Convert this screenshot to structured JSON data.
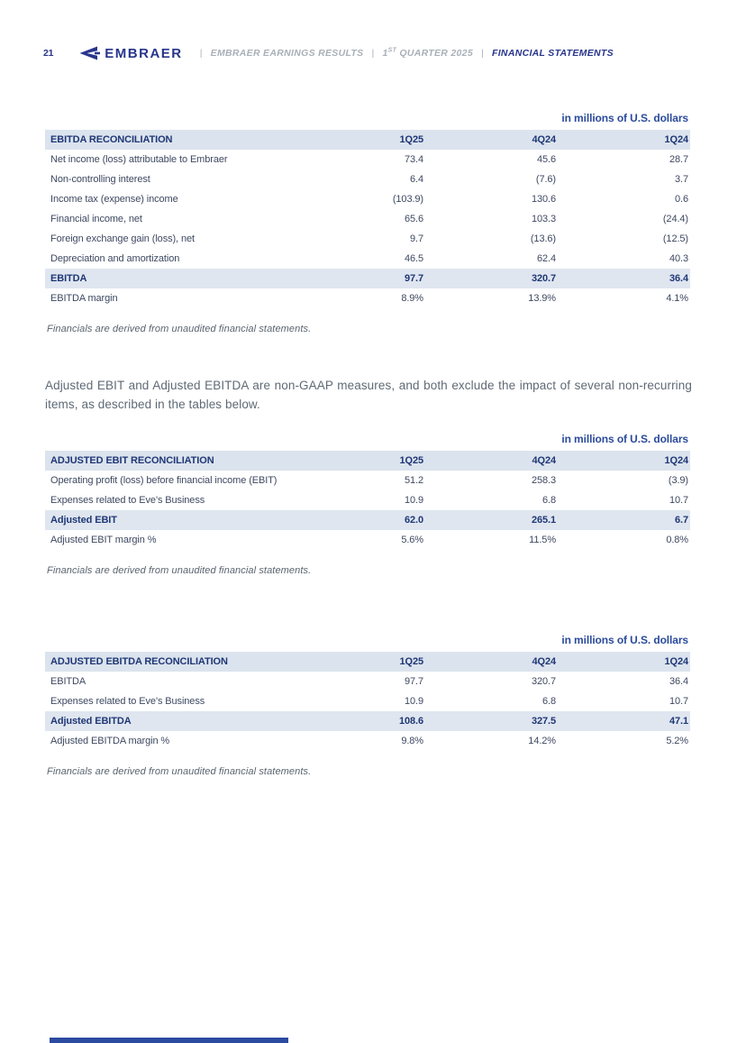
{
  "header": {
    "page_number": "21",
    "logo_brand": "EMBRAER",
    "breadcrumb": {
      "separator": "|",
      "report_name": "EMBRAER EARNINGS RESULTS",
      "quarter_number": "1",
      "quarter_superscript": "st",
      "quarter_rest": " QUARTER 2025",
      "section_name": "FINANCIAL STATEMENTS"
    }
  },
  "unit_label": "in millions of U.S. dollars",
  "footnote": "Financials are derived from unaudited financial statements.",
  "paragraph": "Adjusted EBIT and Adjusted EBITDA are non-GAAP measures, and both exclude the impact of several non-recurring items, as described in the tables below.",
  "colors": {
    "brand_navy": "#27358c",
    "table_header_bg": "#dbe3ee",
    "total_row_bg": "#dfe6f0",
    "muted_gray": "#a9b0b8"
  },
  "tables": [
    {
      "title": "EBITDA RECONCILIATION",
      "columns": [
        "1Q25",
        "4Q24",
        "1Q24"
      ],
      "rows": [
        {
          "label": "Net income (loss) attributable to Embraer",
          "values": [
            "73.4",
            "45.6",
            "28.7"
          ],
          "emphasis": false
        },
        {
          "label": "Non-controlling interest",
          "values": [
            "6.4",
            "(7.6)",
            "3.7"
          ],
          "emphasis": false
        },
        {
          "label": "Income tax (expense) income",
          "values": [
            "(103.9)",
            "130.6",
            "0.6"
          ],
          "emphasis": false
        },
        {
          "label": "Financial income, net",
          "values": [
            "65.6",
            "103.3",
            "(24.4)"
          ],
          "emphasis": false
        },
        {
          "label": "Foreign exchange gain (loss), net",
          "values": [
            "9.7",
            "(13.6)",
            "(12.5)"
          ],
          "emphasis": false
        },
        {
          "label": "Depreciation and amortization",
          "values": [
            "46.5",
            "62.4",
            "40.3"
          ],
          "emphasis": false
        },
        {
          "label": "EBITDA",
          "values": [
            "97.7",
            "320.7",
            "36.4"
          ],
          "emphasis": true
        },
        {
          "label": "EBITDA margin",
          "values": [
            "8.9%",
            "13.9%",
            "4.1%"
          ],
          "emphasis": false
        }
      ]
    },
    {
      "title": "ADJUSTED EBIT RECONCILIATION",
      "columns": [
        "1Q25",
        "4Q24",
        "1Q24"
      ],
      "rows": [
        {
          "label": "Operating profit (loss) before financial income (EBIT)",
          "values": [
            "51.2",
            "258.3",
            "(3.9)"
          ],
          "emphasis": false
        },
        {
          "label": "Expenses related to Eve's Business",
          "values": [
            "10.9",
            "6.8",
            "10.7"
          ],
          "emphasis": false
        },
        {
          "label": "Adjusted EBIT",
          "values": [
            "62.0",
            "265.1",
            "6.7"
          ],
          "emphasis": true
        },
        {
          "label": "Adjusted EBIT margin %",
          "values": [
            "5.6%",
            "11.5%",
            "0.8%"
          ],
          "emphasis": false
        }
      ]
    },
    {
      "title": "ADJUSTED EBITDA RECONCILIATION",
      "columns": [
        "1Q25",
        "4Q24",
        "1Q24"
      ],
      "rows": [
        {
          "label": "EBITDA",
          "values": [
            "97.7",
            "320.7",
            "36.4"
          ],
          "emphasis": false
        },
        {
          "label": "Expenses related to Eve's Business",
          "values": [
            "10.9",
            "6.8",
            "10.7"
          ],
          "emphasis": false
        },
        {
          "label": "Adjusted EBITDA",
          "values": [
            "108.6",
            "327.5",
            "47.1"
          ],
          "emphasis": true
        },
        {
          "label": "Adjusted EBITDA margin %",
          "values": [
            "9.8%",
            "14.2%",
            "5.2%"
          ],
          "emphasis": false
        }
      ]
    }
  ]
}
